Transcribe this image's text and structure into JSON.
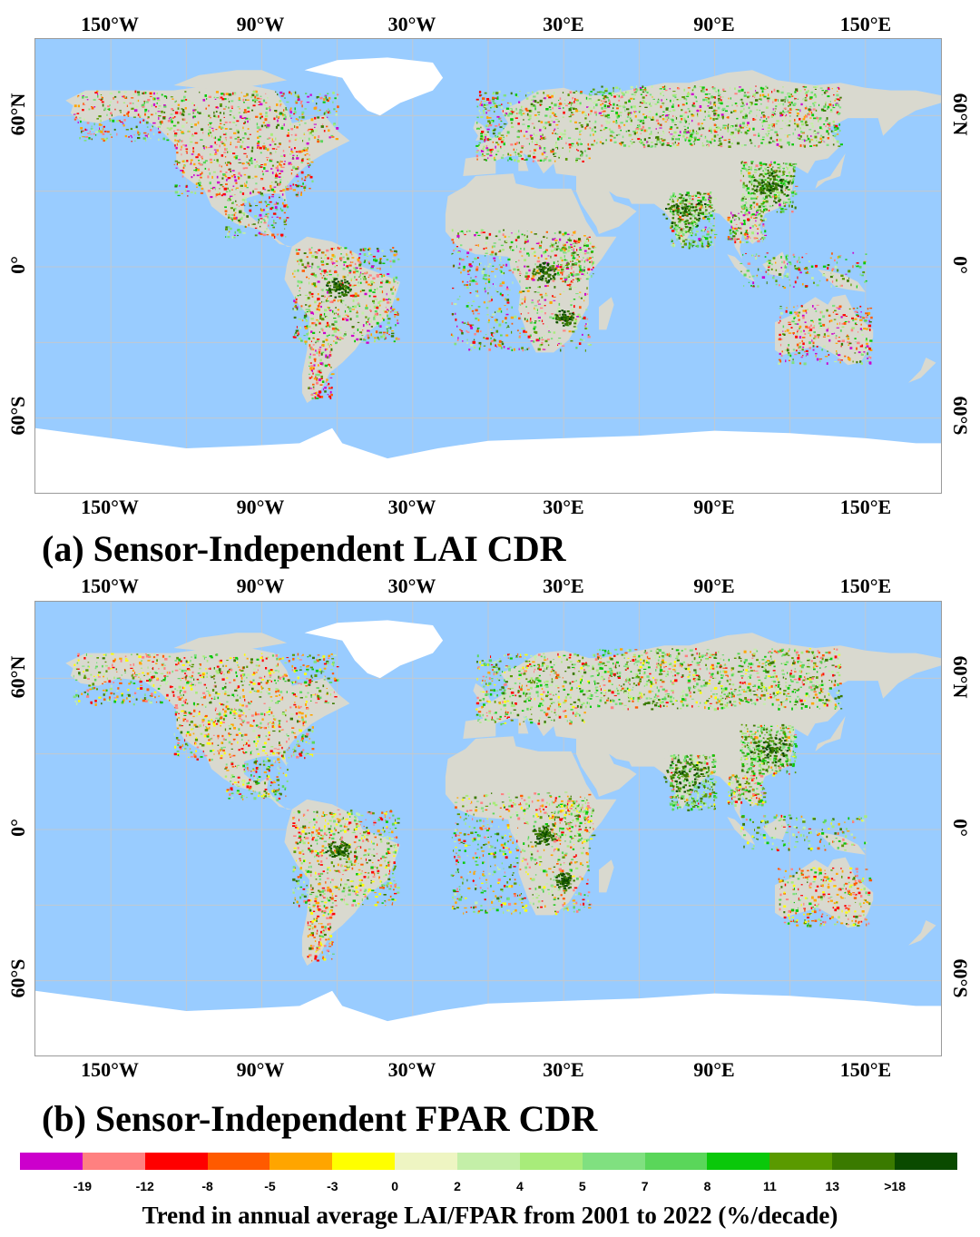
{
  "lon_labels": [
    "150°W",
    "90°W",
    "30°W",
    "30°E",
    "90°E",
    "150°E"
  ],
  "lat_labels": [
    "60°N",
    "0°",
    "60°S"
  ],
  "panels": [
    {
      "title": "(a) Sensor-Independent LAI CDR",
      "variable": "LAI"
    },
    {
      "title": "(b) Sensor-Independent FPAR CDR",
      "variable": "FPAR"
    }
  ],
  "colors": {
    "ocean": "#99ccff",
    "no_data_land": "#ffffff",
    "neutral_land": "#d9d9cf",
    "grid": "#c8c8c8"
  },
  "legend": {
    "title": "Trend in annual average LAI/FPAR from 2001 to 2022  (%/decade)",
    "tick_labels": [
      "-19",
      "-12",
      "-8",
      "-5",
      "-3",
      "0",
      "2",
      "4",
      "5",
      "7",
      "8",
      "11",
      "13",
      ">18"
    ],
    "colors": [
      "#cc00cc",
      "#ff8080",
      "#ff0000",
      "#ff5a00",
      "#ffa500",
      "#ffff00",
      "#eef5c2",
      "#c4efa8",
      "#a8ec7a",
      "#80e080",
      "#5ad65a",
      "#0ac80a",
      "#5a9a00",
      "#3a7a00",
      "#0a4a00"
    ]
  }
}
